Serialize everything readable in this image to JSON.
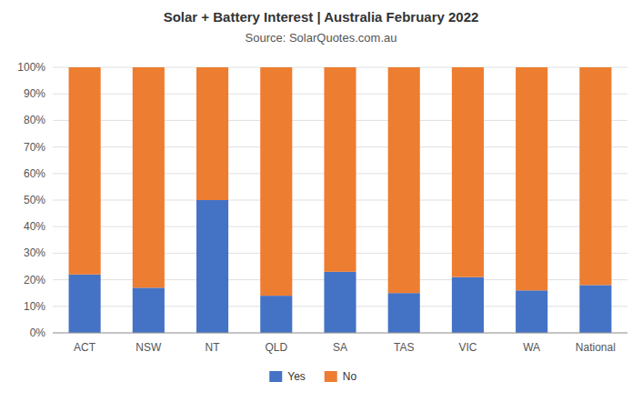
{
  "chart_data": {
    "type": "bar",
    "title": "Solar + Battery Interest  |  Australia February 2022",
    "subtitle": "Source: SolarQuotes.com.au",
    "categories": [
      "ACT",
      "NSW",
      "NT",
      "QLD",
      "SA",
      "TAS",
      "VIC",
      "WA",
      "National"
    ],
    "series": [
      {
        "name": "Yes",
        "color": "#4472c4",
        "values": [
          22,
          17,
          50,
          14,
          23,
          15,
          21,
          16,
          18
        ]
      },
      {
        "name": "No",
        "color": "#ed7d31",
        "values": [
          78,
          83,
          50,
          86,
          77,
          85,
          79,
          84,
          82
        ]
      }
    ],
    "stacked": true,
    "ylim": [
      0,
      100
    ],
    "yticks": [
      {
        "value": 0,
        "label": "0%"
      },
      {
        "value": 10,
        "label": "10%"
      },
      {
        "value": 20,
        "label": "20%"
      },
      {
        "value": 30,
        "label": "30%"
      },
      {
        "value": 40,
        "label": "40%"
      },
      {
        "value": 50,
        "label": "50%"
      },
      {
        "value": 60,
        "label": "60%"
      },
      {
        "value": 70,
        "label": "70%"
      },
      {
        "value": 80,
        "label": "80%"
      },
      {
        "value": 90,
        "label": "90%"
      },
      {
        "value": 100,
        "label": "100%"
      }
    ],
    "grid": true,
    "legend": "bottom"
  }
}
